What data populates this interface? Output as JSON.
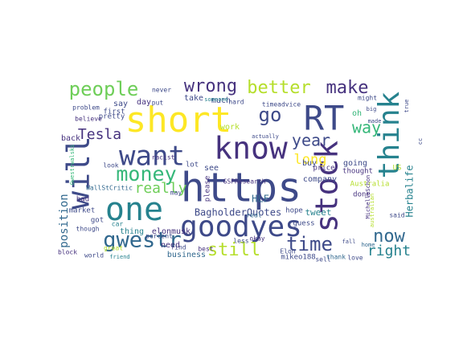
{
  "palette": {
    "dark_purple": "#46327e",
    "purple": "#3e4a89",
    "blue": "#31688e",
    "teal": "#26828e",
    "green_teal": "#1f9e89",
    "green": "#35b779",
    "light_green": "#6ece58",
    "lime": "#b5de2b",
    "yellow": "#fde725",
    "indigo": "#440154"
  },
  "words": [
    {
      "text": "https",
      "color": "#3e4a89"
    },
    {
      "text": "short",
      "color": "#fde725"
    },
    {
      "text": "RT",
      "color": "#3e4a89"
    },
    {
      "text": "stock",
      "color": "#46327e"
    },
    {
      "text": "think",
      "color": "#26828e"
    },
    {
      "text": "will",
      "color": "#3e4a89"
    },
    {
      "text": "one",
      "color": "#26828e"
    },
    {
      "text": "know",
      "color": "#46327e"
    },
    {
      "text": "goodyes",
      "color": "#3e4a89"
    },
    {
      "text": "want",
      "color": "#3e4a89"
    },
    {
      "text": "money",
      "color": "#35b779"
    },
    {
      "text": "gwestr",
      "color": "#31688e"
    },
    {
      "text": "people",
      "color": "#6ece58"
    },
    {
      "text": "wrong",
      "color": "#46327e"
    },
    {
      "text": "better",
      "color": "#b5de2b"
    },
    {
      "text": "make",
      "color": "#46327e"
    },
    {
      "text": "go",
      "color": "#3e4a89"
    },
    {
      "text": "now",
      "color": "#31688e"
    },
    {
      "text": "time",
      "color": "#3e4a89"
    },
    {
      "text": "still",
      "color": "#b5de2b"
    },
    {
      "text": "year",
      "color": "#3e4a89"
    },
    {
      "text": "long",
      "color": "#fde725"
    },
    {
      "text": "way",
      "color": "#35b779"
    },
    {
      "text": "right",
      "color": "#26828e"
    },
    {
      "text": "Tesla",
      "color": "#46327e"
    },
    {
      "text": "really",
      "color": "#6ece58"
    },
    {
      "text": "position",
      "color": "#31688e"
    },
    {
      "text": "BagholderQuotes",
      "color": "#3e4a89"
    },
    {
      "text": "Herbalife",
      "color": "#26828e"
    },
    {
      "text": "HLF",
      "color": "#31688e"
    },
    {
      "text": "tweet",
      "color": "#26828e"
    },
    {
      "text": "company",
      "color": "#3e4a89"
    },
    {
      "text": "see",
      "color": "#3e4a89"
    },
    {
      "text": "elonmusk",
      "color": "#46327e"
    },
    {
      "text": "business",
      "color": "#31688e"
    },
    {
      "text": "market",
      "color": "#3e4a89"
    },
    {
      "text": "need",
      "color": "#46327e"
    },
    {
      "text": "take",
      "color": "#3e4a89"
    },
    {
      "text": "much",
      "color": "#3e4a89"
    },
    {
      "text": "say",
      "color": "#3e4a89"
    },
    {
      "text": "day",
      "color": "#46327e"
    },
    {
      "text": "oh",
      "color": "#35b779"
    },
    {
      "text": "buy",
      "color": "#3e4a89"
    },
    {
      "text": "work",
      "color": "#b5de2b"
    },
    {
      "text": "thing",
      "color": "#26828e"
    },
    {
      "text": "back",
      "color": "#46327e"
    },
    {
      "text": "lot",
      "color": "#3e4a89"
    },
    {
      "text": "going",
      "color": "#3e4a89"
    },
    {
      "text": "thought",
      "color": "#46327e"
    },
    {
      "text": "price",
      "color": "#46327e"
    },
    {
      "text": "hope",
      "color": "#3e4a89"
    },
    {
      "text": "real",
      "color": "#31688e"
    },
    {
      "text": "guess",
      "color": "#3e4a89"
    },
    {
      "text": "okay",
      "color": "#46327e"
    },
    {
      "text": "Elon",
      "color": "#3e4a89"
    },
    {
      "text": "mikeo188",
      "color": "#3e4a89"
    },
    {
      "text": "sell",
      "color": "#3e4a89"
    },
    {
      "text": "done",
      "color": "#46327e"
    },
    {
      "text": "said",
      "color": "#3e4a89"
    },
    {
      "text": "Australia",
      "color": "#b5de2b"
    },
    {
      "text": "US",
      "color": "#b5de2b"
    },
    {
      "text": "thank",
      "color": "#31688e"
    },
    {
      "text": "love",
      "color": "#3e4a89"
    },
    {
      "text": "best",
      "color": "#46327e"
    },
    {
      "text": "find",
      "color": "#3e4a89"
    },
    {
      "text": "percent",
      "color": "#3e4a89"
    },
    {
      "text": "car",
      "color": "#26828e"
    },
    {
      "text": "got",
      "color": "#3e4a89"
    },
    {
      "text": "racist",
      "color": "#46327e"
    },
    {
      "text": "look",
      "color": "#3e4a89"
    },
    {
      "text": "bad",
      "color": "#46327e"
    },
    {
      "text": "great",
      "color": "#b5de2b"
    },
    {
      "text": "world",
      "color": "#3e4a89"
    },
    {
      "text": "friend",
      "color": "#26828e"
    },
    {
      "text": "block",
      "color": "#46327e"
    },
    {
      "text": "though",
      "color": "#3e4a89"
    },
    {
      "text": "WallStCritic",
      "color": "#31688e"
    },
    {
      "text": "pretty",
      "color": "#3e4a89"
    },
    {
      "text": "first",
      "color": "#3e4a89"
    },
    {
      "text": "problem",
      "color": "#3e4a89"
    },
    {
      "text": "believe",
      "color": "#46327e"
    },
    {
      "text": "never",
      "color": "#3e4a89"
    },
    {
      "text": "put",
      "color": "#3e4a89"
    },
    {
      "text": "hard",
      "color": "#3e4a89"
    },
    {
      "text": "timeadvice",
      "color": "#3e4a89"
    },
    {
      "text": "please",
      "color": "#46327e"
    },
    {
      "text": "may",
      "color": "#3e4a89"
    },
    {
      "text": "less",
      "color": "#3e4a89"
    },
    {
      "text": "might",
      "color": "#3e4a89"
    },
    {
      "text": "made",
      "color": "#3e4a89"
    },
    {
      "text": "big",
      "color": "#3e4a89"
    },
    {
      "text": "true",
      "color": "#3e4a89"
    },
    {
      "text": "home",
      "color": "#31688e"
    },
    {
      "text": "fall",
      "color": "#3e4a89"
    },
    {
      "text": "cc",
      "color": "#3e4a89"
    },
    {
      "text": "someone",
      "color": "#26828e"
    },
    {
      "text": "actually",
      "color": "#3e4a89"
    },
    {
      "text": "MichelleSchon",
      "color": "#46327e"
    },
    {
      "text": "australian",
      "color": "#b5de2b"
    },
    {
      "text": "GSPResearch",
      "color": "#46327e"
    },
    {
      "text": "Gwestrwalski",
      "color": "#35b779"
    }
  ]
}
